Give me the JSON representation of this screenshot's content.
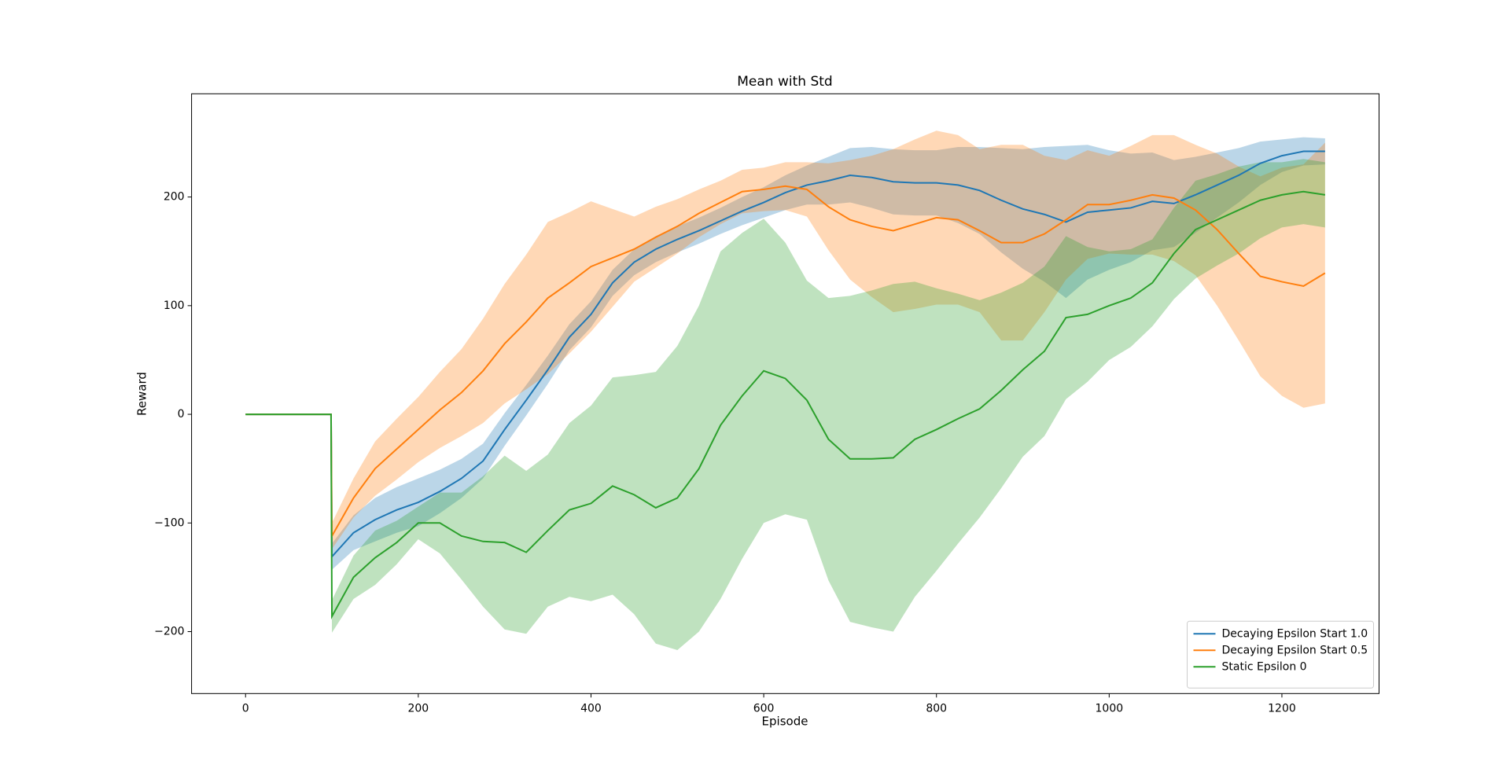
{
  "chart_data": {
    "type": "line",
    "title": "Mean with Std",
    "x_label": "Episode",
    "y_label": "Reward",
    "x": [
      0,
      99,
      100,
      125,
      150,
      175,
      200,
      225,
      250,
      275,
      300,
      325,
      350,
      375,
      400,
      425,
      450,
      475,
      500,
      525,
      550,
      575,
      600,
      625,
      650,
      675,
      700,
      725,
      750,
      775,
      800,
      825,
      850,
      875,
      900,
      925,
      950,
      975,
      1000,
      1025,
      1050,
      1075,
      1100,
      1125,
      1150,
      1175,
      1200,
      1225,
      1250
    ],
    "series": [
      {
        "name": "Decaying Epsilon Start 1.0",
        "color": "#1f77b4",
        "values": [
          0,
          0,
          -131,
          -109,
          -97,
          -88,
          -81,
          -71,
          -59,
          -43,
          -14,
          13,
          41,
          71,
          92,
          121,
          140,
          152,
          161,
          169,
          178,
          187,
          195,
          204,
          211,
          215,
          220,
          218,
          214,
          213,
          213,
          211,
          206,
          197,
          189,
          184,
          177,
          186,
          188,
          190,
          196,
          194,
          202,
          211,
          220,
          231,
          238,
          242,
          242
        ],
        "std": [
          0,
          0,
          12,
          16,
          20,
          21,
          22,
          20,
          18,
          16,
          15,
          14,
          13,
          12,
          12,
          12,
          12,
          12,
          12,
          12,
          12,
          13,
          14,
          16,
          18,
          22,
          25,
          28,
          30,
          30,
          30,
          35,
          40,
          48,
          55,
          62,
          70,
          62,
          55,
          50,
          45,
          40,
          35,
          30,
          25,
          20,
          15,
          13,
          12
        ]
      },
      {
        "name": "Decaying Epsilon Start 0.5",
        "color": "#ff7f0e",
        "values": [
          0,
          0,
          -112,
          -77,
          -50,
          -32,
          -14,
          4,
          20,
          40,
          65,
          85,
          107,
          121,
          136,
          144,
          152,
          163,
          173,
          185,
          195,
          205,
          207,
          210,
          207,
          191,
          179,
          173,
          169,
          175,
          181,
          179,
          169,
          158,
          158,
          166,
          179,
          193,
          193,
          197,
          202,
          199,
          188,
          170,
          148,
          127,
          122,
          118,
          130
        ],
        "std": [
          0,
          0,
          12,
          18,
          25,
          28,
          30,
          35,
          40,
          48,
          55,
          62,
          70,
          65,
          60,
          45,
          30,
          28,
          25,
          22,
          20,
          20,
          20,
          22,
          25,
          40,
          55,
          65,
          75,
          78,
          80,
          78,
          75,
          90,
          90,
          72,
          55,
          50,
          45,
          50,
          55,
          58,
          60,
          70,
          80,
          92,
          105,
          112,
          120
        ]
      },
      {
        "name": "Static Epsilon 0",
        "color": "#2ca02c",
        "values": [
          0,
          0,
          -186,
          -150,
          -132,
          -118,
          -100,
          -100,
          -112,
          -117,
          -118,
          -127,
          -107,
          -88,
          -82,
          -66,
          -74,
          -86,
          -77,
          -50,
          -10,
          17,
          40,
          33,
          13,
          -23,
          -41,
          -41,
          -40,
          -23,
          -14,
          -4,
          5,
          22,
          41,
          58,
          89,
          92,
          100,
          107,
          121,
          148,
          170,
          179,
          188,
          197,
          202,
          205,
          202
        ],
        "std": [
          0,
          0,
          15,
          20,
          25,
          20,
          15,
          28,
          40,
          60,
          80,
          75,
          70,
          80,
          90,
          100,
          110,
          125,
          140,
          150,
          160,
          150,
          140,
          125,
          110,
          130,
          150,
          155,
          160,
          145,
          130,
          115,
          100,
          90,
          80,
          78,
          75,
          62,
          50,
          45,
          40,
          42,
          45,
          42,
          40,
          35,
          30,
          30,
          30
        ]
      }
    ],
    "band_opacity": 0.3,
    "xlim": [
      -62.5,
      1312.5
    ],
    "ylim": [
      -257,
      295
    ],
    "xticks": [
      0,
      200,
      400,
      600,
      800,
      1000,
      1200
    ],
    "yticks": [
      {
        "value": -200,
        "label": "−200"
      },
      {
        "value": -100,
        "label": "−100"
      },
      0,
      100,
      200
    ],
    "grid": false,
    "legend": "lower right"
  }
}
